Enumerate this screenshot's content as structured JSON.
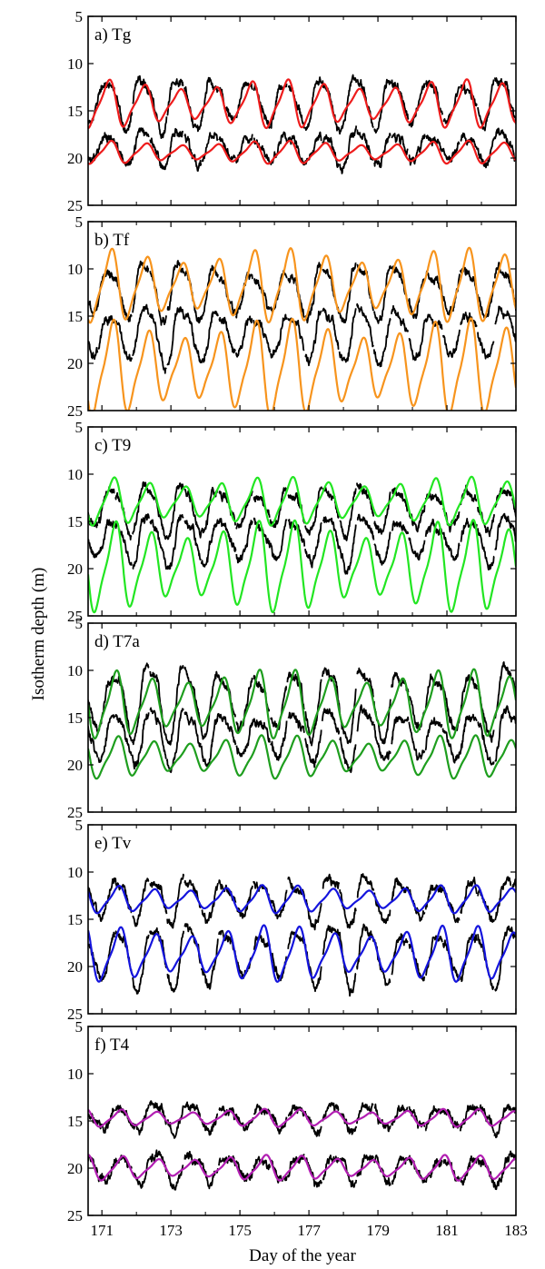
{
  "ylabel": "Isotherm depth (m)",
  "xlabel": "Day of the year",
  "xlim": [
    170.6,
    183
  ],
  "ylim": [
    5,
    25
  ],
  "y_reversed": true,
  "xticks": [
    "171",
    "173",
    "175",
    "177",
    "179",
    "181",
    "183"
  ],
  "yticks": [
    "5",
    "10",
    "15",
    "20",
    "25"
  ],
  "colors": {
    "observed": "#000000"
  },
  "chart_data": [
    {
      "type": "line",
      "label": "a) Tg",
      "model_color": "#ee1c1c",
      "upper": {
        "obs_mean": 14.0,
        "obs_amp": 2.2,
        "model_mean": 14.3,
        "model_amp": 1.9
      },
      "lower": {
        "obs_mean": 18.9,
        "obs_amp": 1.4,
        "model_mean": 19.4,
        "model_amp": 0.9
      }
    },
    {
      "type": "line",
      "label": "b) Tf",
      "model_color": "#f7941d",
      "upper": {
        "obs_mean": 12.3,
        "obs_amp": 2.4,
        "model_mean": 11.8,
        "model_amp": 2.9
      },
      "lower": {
        "obs_mean": 16.8,
        "obs_amp": 2.3,
        "model_mean": 20.5,
        "model_amp": 3.8
      }
    },
    {
      "type": "line",
      "label": "c) T9",
      "model_color": "#22e622",
      "upper": {
        "obs_mean": 13.6,
        "obs_amp": 2.0,
        "model_mean": 12.9,
        "model_amp": 1.9
      },
      "lower": {
        "obs_mean": 16.9,
        "obs_amp": 2.1,
        "model_mean": 19.8,
        "model_amp": 3.6
      }
    },
    {
      "type": "line",
      "label": "d) T7a",
      "model_color": "#1e9e1e",
      "upper": {
        "obs_mean": 13.2,
        "obs_amp": 3.0,
        "model_mean": 13.6,
        "model_amp": 2.7
      },
      "lower": {
        "obs_mean": 16.9,
        "obs_amp": 2.3,
        "model_mean": 19.2,
        "model_amp": 1.7
      }
    },
    {
      "type": "line",
      "label": "e) Tv",
      "model_color": "#1414dd",
      "upper": {
        "obs_mean": 12.8,
        "obs_amp": 1.9,
        "model_mean": 12.9,
        "model_amp": 1.1
      },
      "lower": {
        "obs_mean": 18.8,
        "obs_amp": 2.6,
        "model_mean": 18.7,
        "model_amp": 2.2
      }
    },
    {
      "type": "line",
      "label": "f) T4",
      "model_color": "#b21eb2",
      "upper": {
        "obs_mean": 14.6,
        "obs_amp": 1.1,
        "model_mean": 14.7,
        "model_amp": 0.7
      },
      "lower": {
        "obs_mean": 20.0,
        "obs_amp": 1.2,
        "model_mean": 20.0,
        "model_amp": 1.0
      }
    }
  ]
}
